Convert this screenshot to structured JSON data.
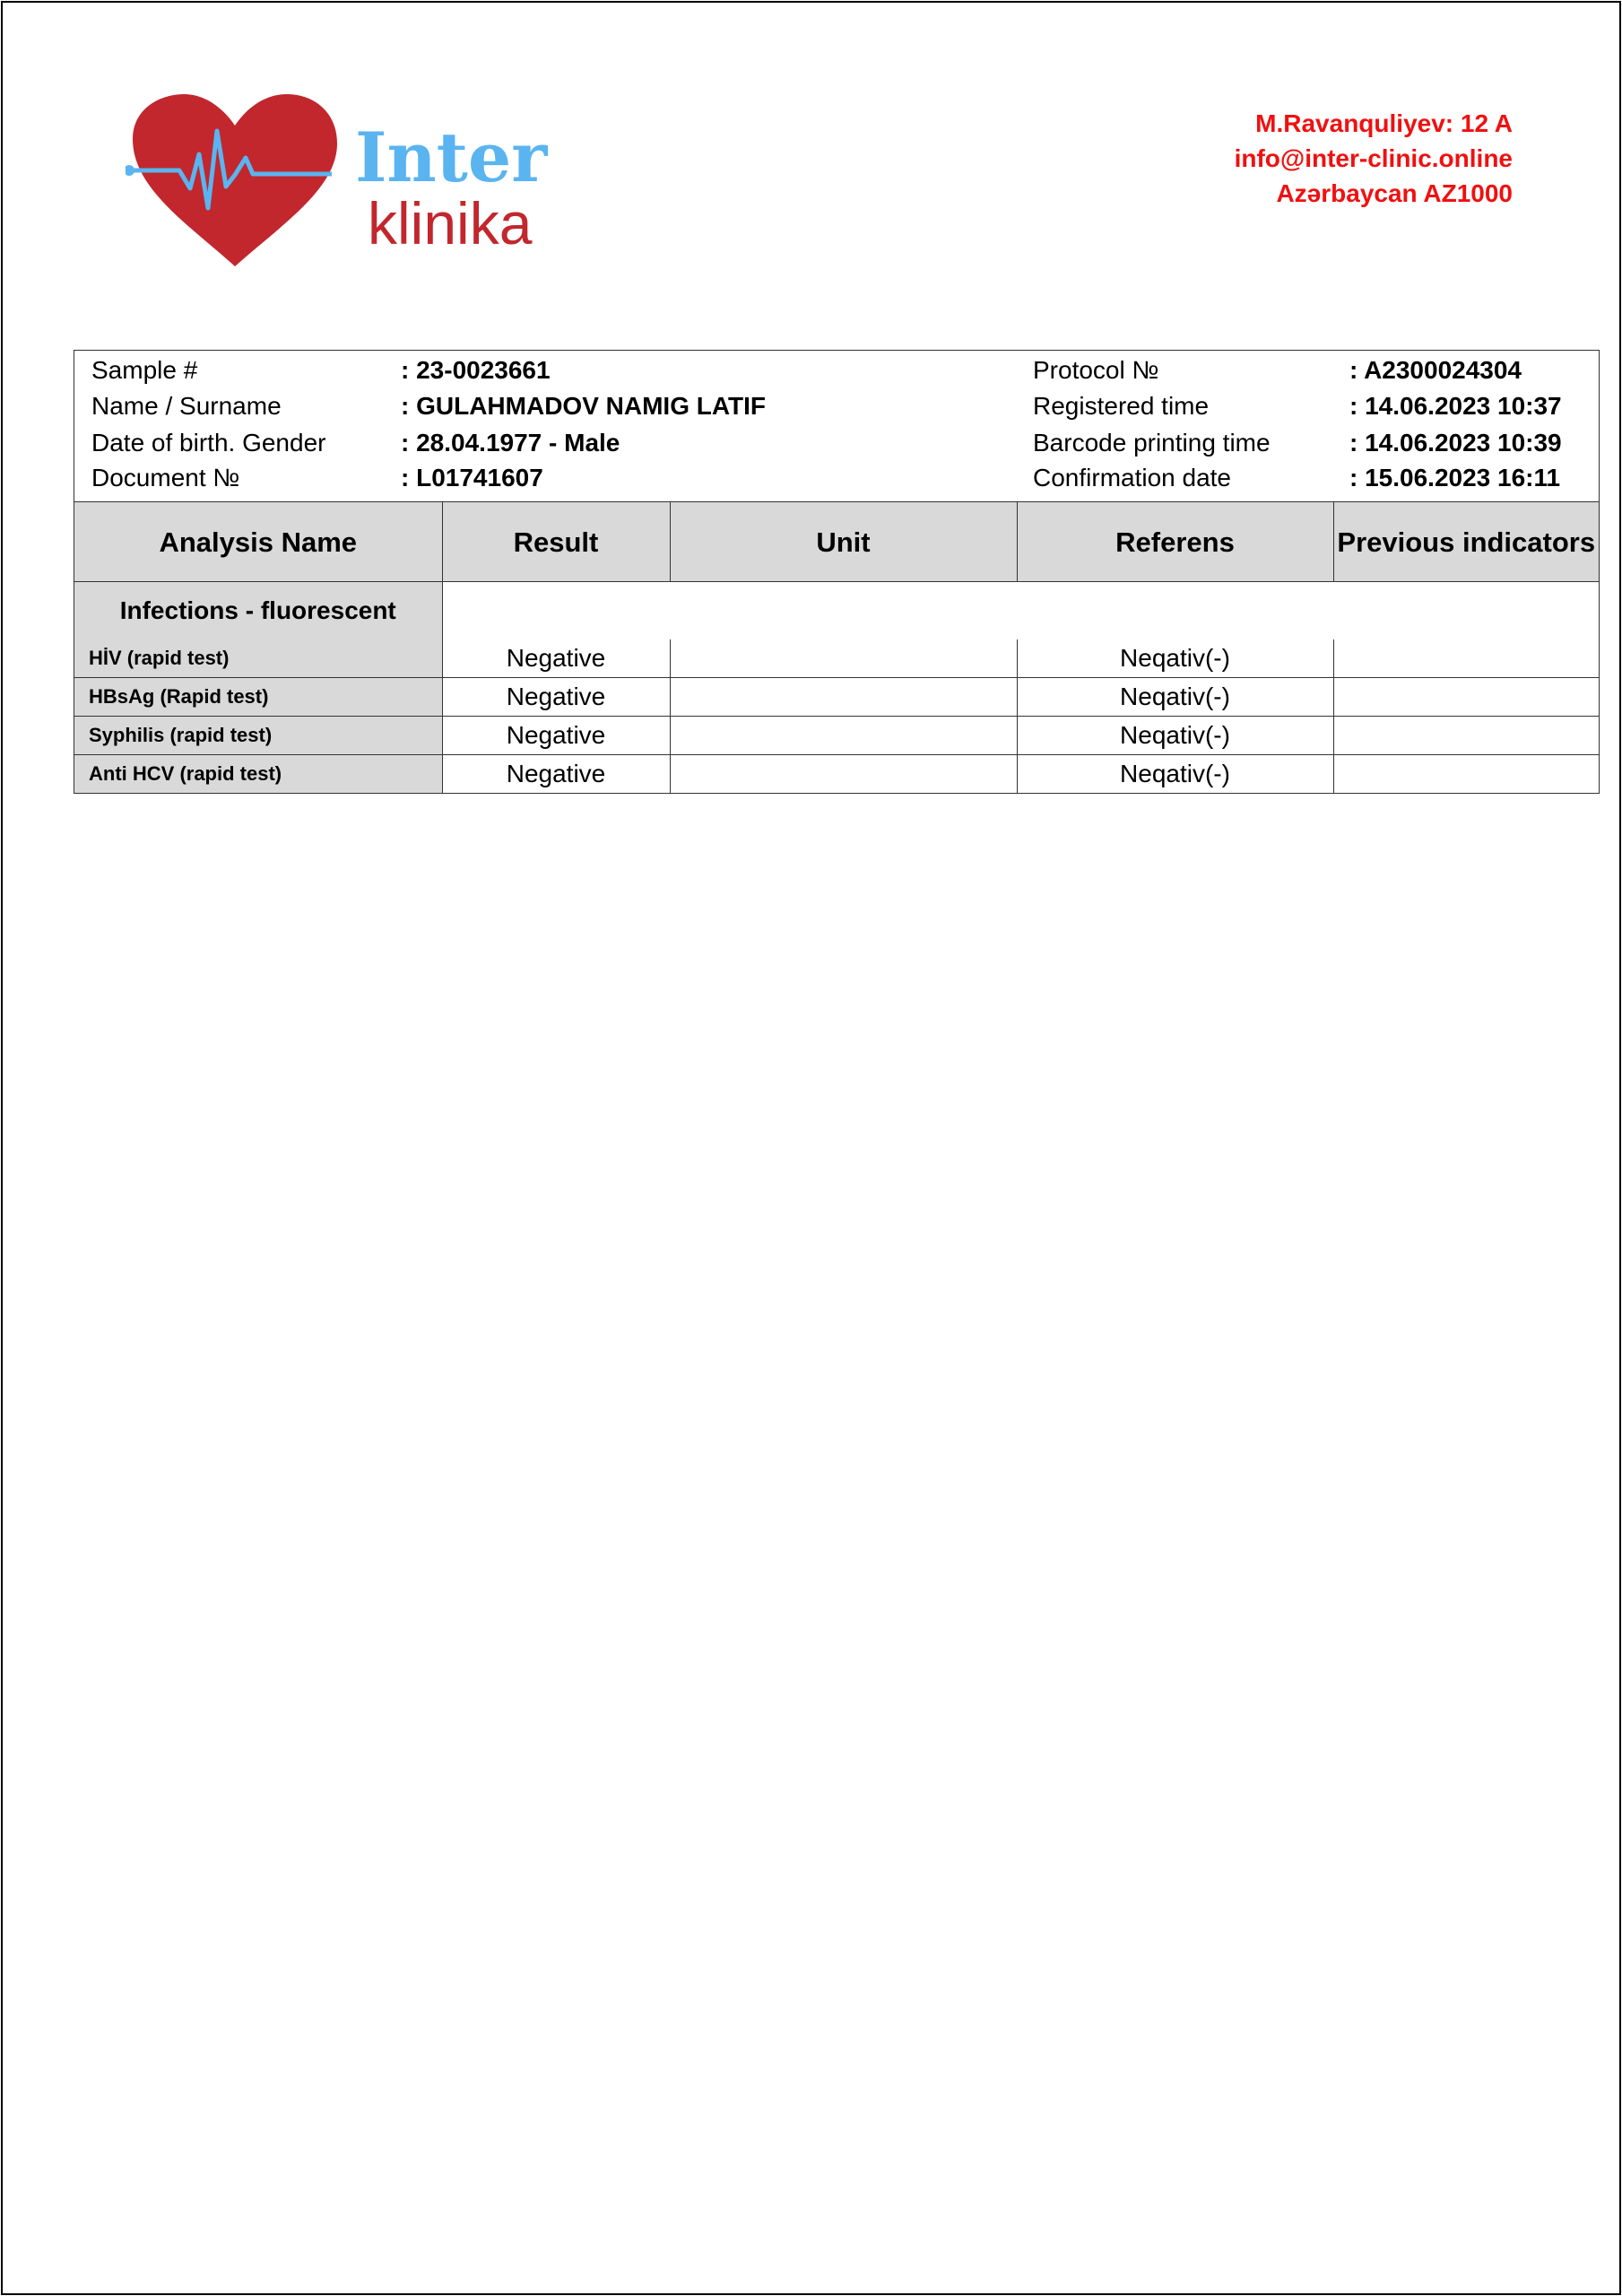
{
  "logo": {
    "text_top": "Inter",
    "text_bottom": "klinika",
    "heart_color": "#c1272d",
    "accent_color": "#5ab4f0"
  },
  "address": {
    "line1": "M.Ravanquliyev: 12 A",
    "line2": "info@inter-clinic.online",
    "line3": "Azərbaycan AZ1000",
    "color": "#f01010"
  },
  "info": {
    "left": [
      {
        "label": "Sample #",
        "value": ": 23-0023661"
      },
      {
        "label": "Name / Surname",
        "value": ": GULAHMADOV NAMIG LATIF"
      },
      {
        "label": "Date of birth. Gender",
        "value": ": 28.04.1977 - Male"
      },
      {
        "label": "Document №",
        "value": ": L01741607"
      }
    ],
    "right": [
      {
        "label": "Protocol №",
        "value": ": A2300024304"
      },
      {
        "label": "Registered time",
        "value": ": 14.06.2023 10:37"
      },
      {
        "label": "Barcode printing time",
        "value": ": 14.06.2023 10:39"
      },
      {
        "label": "Confirmation date",
        "value": ": 15.06.2023 16:11"
      }
    ]
  },
  "table": {
    "headers": [
      "Analysis Name",
      "Result",
      "Unit",
      "Referens",
      "Previous indicators"
    ],
    "group": "Infections - fluorescent",
    "rows": [
      {
        "name": "HİV (rapid test)",
        "result": "Negative",
        "unit": "",
        "reference": "Neqativ(-)",
        "previous": ""
      },
      {
        "name": "HBsAg (Rapid test)",
        "result": "Negative",
        "unit": "",
        "reference": "Neqativ(-)",
        "previous": ""
      },
      {
        "name": "Syphilis (rapid test)",
        "result": "Negative",
        "unit": "",
        "reference": "Neqativ(-)",
        "previous": ""
      },
      {
        "name": "Anti HCV (rapid test)",
        "result": "Negative",
        "unit": "",
        "reference": "Neqativ(-)",
        "previous": ""
      }
    ]
  }
}
